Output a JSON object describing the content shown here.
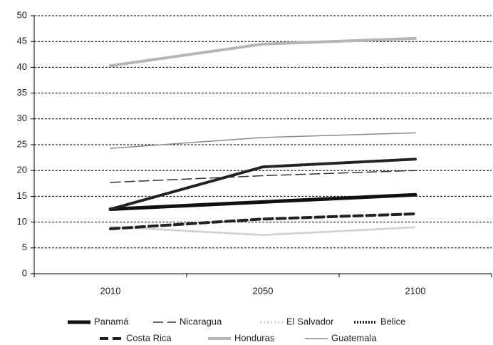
{
  "chart_data": {
    "type": "line",
    "categories": [
      "2010",
      "2050",
      "2100"
    ],
    "ylim": [
      0,
      50
    ],
    "yticks": [
      0,
      5,
      10,
      15,
      20,
      25,
      30,
      35,
      40,
      45,
      50
    ],
    "grid": true,
    "series": [
      {
        "name": "Panamá",
        "color": "#111111",
        "values": [
          12.5,
          13.9,
          15.3
        ]
      },
      {
        "name": "Nicaragua",
        "color": "#333333",
        "values": [
          17.7,
          19,
          20
        ]
      },
      {
        "name": "El Salvador",
        "color": "#d0d0d0",
        "values": [
          9.1,
          7.5,
          9
        ]
      },
      {
        "name": "Belice",
        "color": "#222222",
        "values": [
          12.5,
          20.7,
          22.2
        ]
      },
      {
        "name": "Costa Rica",
        "color": "#222222",
        "values": [
          8.7,
          10.6,
          11.6
        ]
      },
      {
        "name": "Honduras",
        "color": "#b5b5b5",
        "values": [
          40.3,
          44.5,
          45.6
        ]
      },
      {
        "name": "Guatemala",
        "color": "#8a8a8a",
        "values": [
          24.3,
          26.4,
          27.3
        ]
      }
    ]
  }
}
